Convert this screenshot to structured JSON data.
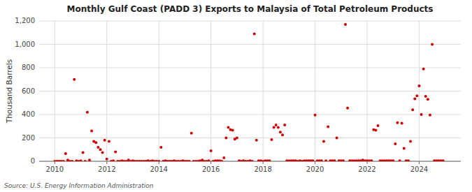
{
  "chart_data": {
    "type": "scatter",
    "title": "Monthly Gulf Coast (PADD 3) Exports to Malaysia of Total Petroleum Products",
    "ylabel": "Thousand Barrels",
    "source": "Source: U.S. Energy Information Administration",
    "color": "#cc0000",
    "grid": true,
    "xlim": [
      2009.4,
      2025.6
    ],
    "ylim": [
      0,
      1200
    ],
    "xticks": [
      2010,
      2012,
      2014,
      2016,
      2018,
      2020,
      2022,
      2024
    ],
    "yticks": [
      0,
      200,
      400,
      600,
      800,
      {
        "value": 1000,
        "label": "1,000"
      },
      {
        "value": 1200,
        "label": "1,200"
      }
    ],
    "x": [
      2010.0,
      2010.083,
      2010.167,
      2010.25,
      2010.333,
      2010.417,
      2010.5,
      2010.583,
      2010.667,
      2010.75,
      2010.833,
      2010.917,
      2011.0,
      2011.083,
      2011.167,
      2011.25,
      2011.333,
      2011.417,
      2011.5,
      2011.583,
      2011.667,
      2011.75,
      2011.833,
      2011.917,
      2012.0,
      2012.083,
      2012.167,
      2012.25,
      2012.333,
      2012.417,
      2012.5,
      2012.583,
      2012.667,
      2012.75,
      2012.833,
      2012.917,
      2013.0,
      2013.083,
      2013.167,
      2013.25,
      2013.333,
      2013.417,
      2013.5,
      2013.583,
      2013.667,
      2013.75,
      2013.833,
      2013.917,
      2014.0,
      2014.083,
      2014.167,
      2014.25,
      2014.333,
      2014.417,
      2014.5,
      2014.583,
      2014.667,
      2014.75,
      2014.833,
      2014.917,
      2015.0,
      2015.083,
      2015.167,
      2015.25,
      2015.333,
      2015.417,
      2015.5,
      2015.583,
      2015.667,
      2015.75,
      2015.833,
      2015.917,
      2016.0,
      2016.083,
      2016.167,
      2016.25,
      2016.333,
      2016.417,
      2016.5,
      2016.583,
      2016.667,
      2016.75,
      2016.833,
      2016.917,
      2017.0,
      2017.083,
      2017.167,
      2017.25,
      2017.333,
      2017.417,
      2017.5,
      2017.583,
      2017.667,
      2017.75,
      2017.833,
      2017.917,
      2018.0,
      2018.083,
      2018.167,
      2018.25,
      2018.333,
      2018.417,
      2018.5,
      2018.583,
      2018.667,
      2018.75,
      2018.833,
      2018.917,
      2019.0,
      2019.083,
      2019.167,
      2019.25,
      2019.333,
      2019.417,
      2019.5,
      2019.583,
      2019.667,
      2019.75,
      2019.833,
      2019.917,
      2020.0,
      2020.083,
      2020.167,
      2020.25,
      2020.333,
      2020.417,
      2020.5,
      2020.583,
      2020.667,
      2020.75,
      2020.833,
      2020.917,
      2021.0,
      2021.083,
      2021.167,
      2021.25,
      2021.333,
      2021.417,
      2021.5,
      2021.583,
      2021.667,
      2021.75,
      2021.833,
      2021.917,
      2022.0,
      2022.083,
      2022.167,
      2022.25,
      2022.333,
      2022.417,
      2022.5,
      2022.583,
      2022.667,
      2022.75,
      2022.833,
      2022.917,
      2023.0,
      2023.083,
      2023.167,
      2023.25,
      2023.333,
      2023.417,
      2023.5,
      2023.583,
      2023.667,
      2023.75,
      2023.833,
      2023.917,
      2024.0,
      2024.083,
      2024.167,
      2024.25,
      2024.333,
      2024.417,
      2024.5,
      2024.583,
      2024.667,
      2024.75,
      2024.833,
      2024.917
    ],
    "values": [
      0,
      0,
      0,
      0,
      0,
      65,
      10,
      0,
      0,
      700,
      5,
      0,
      5,
      75,
      0,
      420,
      10,
      260,
      170,
      160,
      120,
      100,
      75,
      180,
      20,
      170,
      0,
      5,
      80,
      0,
      0,
      5,
      0,
      0,
      10,
      0,
      5,
      0,
      0,
      0,
      0,
      0,
      0,
      5,
      0,
      5,
      0,
      0,
      0,
      120,
      0,
      5,
      0,
      0,
      0,
      5,
      0,
      0,
      0,
      5,
      0,
      0,
      0,
      240,
      0,
      0,
      0,
      5,
      10,
      0,
      0,
      5,
      90,
      0,
      5,
      5,
      5,
      0,
      30,
      200,
      290,
      270,
      265,
      190,
      200,
      5,
      0,
      5,
      0,
      0,
      5,
      0,
      1090,
      180,
      5,
      5,
      0,
      5,
      5,
      5,
      185,
      290,
      310,
      290,
      250,
      225,
      310,
      5,
      5,
      5,
      5,
      5,
      0,
      5,
      0,
      5,
      5,
      5,
      5,
      5,
      395,
      5,
      5,
      5,
      170,
      5,
      295,
      5,
      5,
      5,
      200,
      5,
      5,
      5,
      1170,
      455,
      5,
      5,
      5,
      5,
      5,
      5,
      10,
      5,
      5,
      5,
      5,
      270,
      265,
      305,
      5,
      5,
      5,
      5,
      5,
      5,
      5,
      150,
      330,
      5,
      325,
      110,
      5,
      5,
      170,
      440,
      535,
      560,
      645,
      400,
      790,
      555,
      530,
      395,
      1000,
      5,
      5,
      5,
      5,
      5
    ]
  }
}
